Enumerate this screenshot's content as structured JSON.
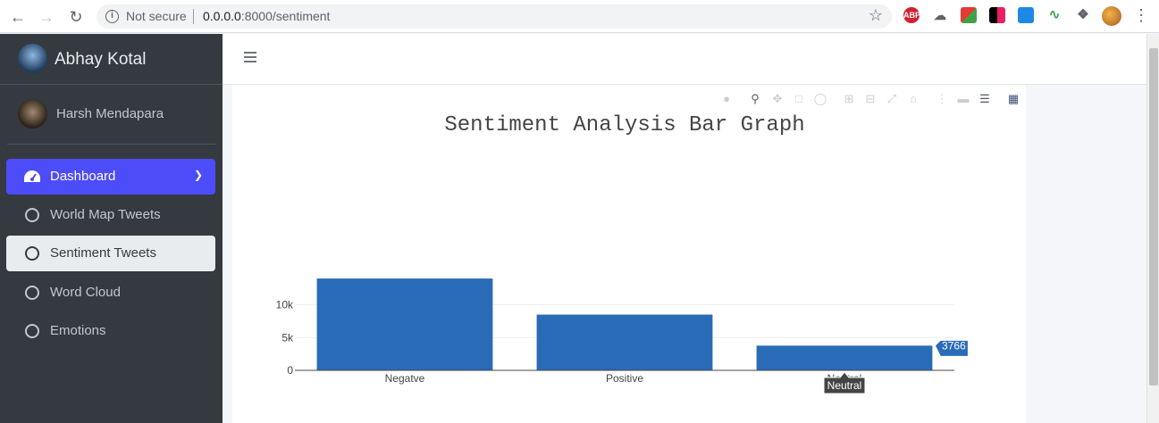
{
  "browser": {
    "not_secure": "Not secure",
    "url_host": "0.0.0.0",
    "url_path": ":8000/sentiment"
  },
  "sidebar": {
    "brand": "Abhay Kotal",
    "user": "Harsh Mendapara",
    "items": [
      {
        "label": "Dashboard"
      },
      {
        "label": "World Map Tweets"
      },
      {
        "label": "Sentiment Tweets"
      },
      {
        "label": "Word Cloud"
      },
      {
        "label": "Emotions"
      }
    ]
  },
  "colors": {
    "bar": "#2a6bb7",
    "accent": "#4d4cf9",
    "sidebar": "#343a40"
  },
  "chart_data": {
    "type": "bar",
    "title": "Sentiment Analysis Bar Graph",
    "categories": [
      "Negatve",
      "Positive",
      "Neutral"
    ],
    "values": [
      14000,
      8500,
      3766
    ],
    "ylim": [
      0,
      15000
    ],
    "yticks": [
      0,
      5000,
      10000
    ],
    "ytick_labels": [
      "0",
      "5k",
      "10k"
    ],
    "hover": {
      "value": "3766",
      "category": "Neutral"
    }
  }
}
